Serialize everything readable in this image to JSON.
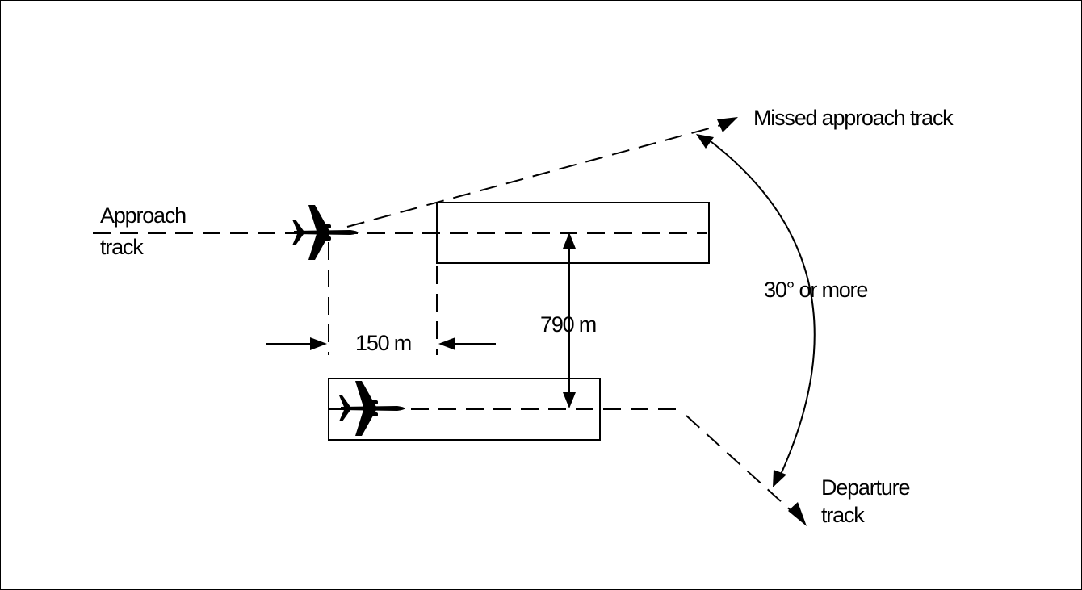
{
  "labels": {
    "missed_approach": "Missed approach track",
    "approach_line1": "Approach",
    "approach_line2": "track",
    "angle": "30° or more",
    "separation": "790 m",
    "offset": "150 m",
    "departure_line1": "Departure",
    "departure_line2": "track"
  },
  "colors": {
    "ink": "#000000",
    "background": "#ffffff"
  },
  "icons": [
    "aircraft-icon"
  ]
}
